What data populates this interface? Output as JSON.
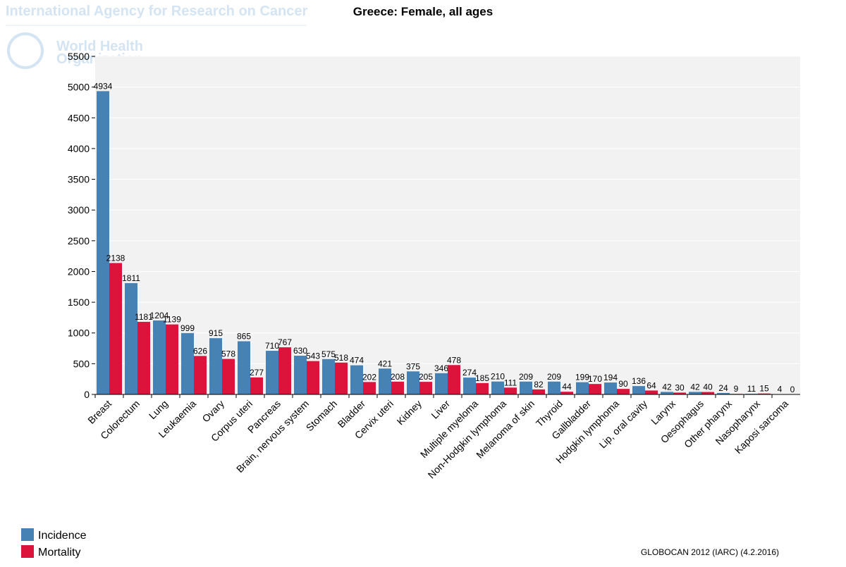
{
  "header": {
    "agency": "International Agency for Research on Cancer",
    "who_line1": "World Health",
    "who_line2": "Organization"
  },
  "chart_data": {
    "type": "bar",
    "title": "Greece: Female, all ages",
    "categories": [
      "Breast",
      "Colorectum",
      "Lung",
      "Leukaemia",
      "Ovary",
      "Corpus uteri",
      "Pancreas",
      "Brain, nervous system",
      "Stomach",
      "Bladder",
      "Cervix uteri",
      "Kidney",
      "Liver",
      "Multiple myeloma",
      "Non-Hodgkin lymphoma",
      "Melanoma of skin",
      "Thyroid",
      "Gallbladder",
      "Hodgkin lymphoma",
      "Lip, oral cavity",
      "Larynx",
      "Oesophagus",
      "Other pharynx",
      "Nasopharynx",
      "Kaposi sarcoma"
    ],
    "series": [
      {
        "name": "Incidence",
        "color": "#4682b4",
        "values": [
          4934,
          1811,
          1204,
          999,
          915,
          865,
          710,
          630,
          575,
          474,
          421,
          375,
          346,
          274,
          210,
          209,
          209,
          199,
          194,
          136,
          42,
          42,
          24,
          11,
          4
        ]
      },
      {
        "name": "Mortality",
        "color": "#dc143c",
        "values": [
          2138,
          1181,
          1139,
          626,
          578,
          277,
          767,
          543,
          518,
          202,
          208,
          205,
          478,
          185,
          111,
          82,
          44,
          170,
          90,
          64,
          30,
          40,
          9,
          15,
          0
        ]
      }
    ],
    "ylim": [
      0,
      5500
    ],
    "yticks": [
      0,
      500,
      1000,
      1500,
      2000,
      2500,
      3000,
      3500,
      4000,
      4500,
      5000,
      5500
    ],
    "grid": true,
    "legend": "bottom-left",
    "note": "GLOBOCAN 2012 (IARC) (4.2.2016)"
  }
}
